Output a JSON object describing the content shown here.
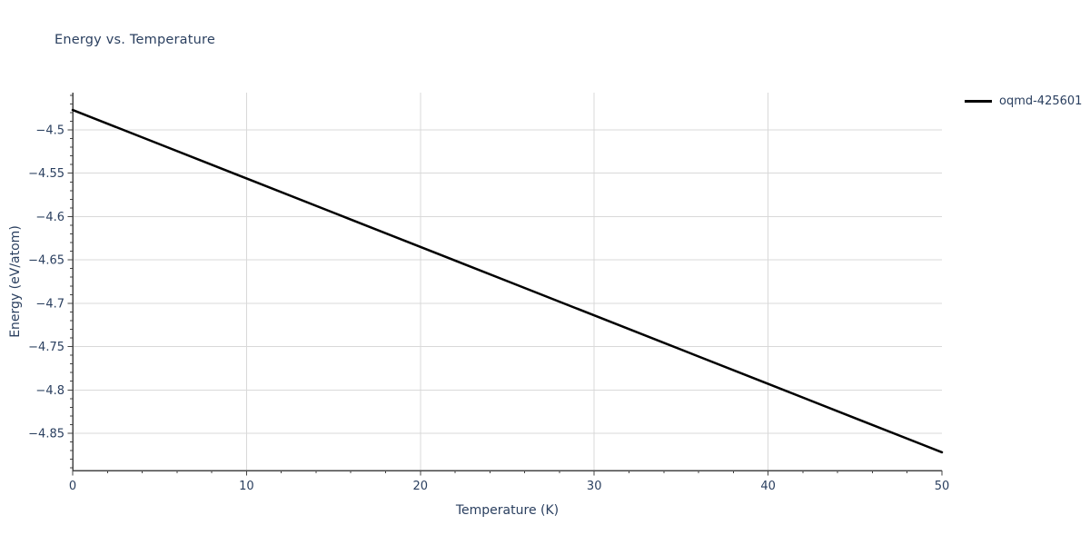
{
  "page": {
    "background": "#ffffff"
  },
  "chart_data": {
    "type": "line",
    "title": "Energy vs. Temperature",
    "xlabel": "Temperature (K)",
    "ylabel": "Energy (eV/atom)",
    "xlim": [
      0,
      50
    ],
    "ylim": [
      -4.893,
      -4.457
    ],
    "x_major_ticks": [
      0,
      10,
      20,
      30,
      40,
      50
    ],
    "x_minor_step": 2,
    "y_major_ticks": [
      -4.85,
      -4.8,
      -4.75,
      -4.7,
      -4.65,
      -4.6,
      -4.55,
      -4.5
    ],
    "y_minor_step": 0.01,
    "grid": true,
    "legend_position": "top-right-outside",
    "series": [
      {
        "name": "oqmd-425601",
        "color": "#000000",
        "line_width": 2.5,
        "x": [
          0,
          5,
          10,
          15,
          20,
          25,
          30,
          35,
          40,
          45,
          50
        ],
        "y": [
          -4.477,
          -4.5165,
          -4.556,
          -4.5955,
          -4.635,
          -4.6745,
          -4.714,
          -4.7535,
          -4.793,
          -4.8325,
          -4.872
        ]
      }
    ],
    "colors": {
      "font": "#2a3f5f",
      "grid": "#d9d9d9",
      "axis": "#444444",
      "background": "#ffffff"
    }
  }
}
